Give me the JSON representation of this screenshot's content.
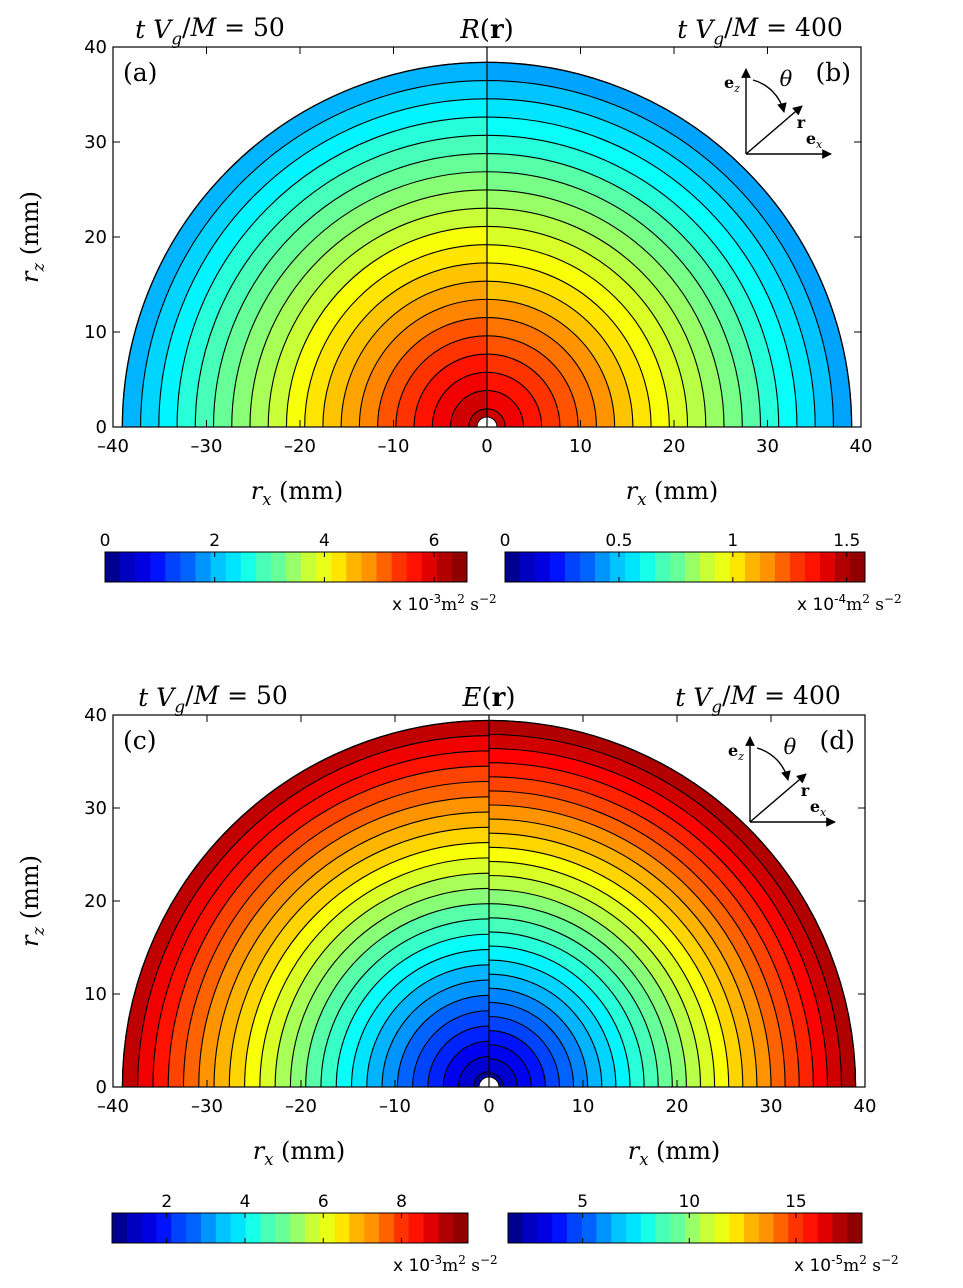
{
  "chart_data": [
    {
      "type": "heatmap",
      "kind": "polar-contour-half-disc",
      "title": "R(r)",
      "time_left": "t V_g/M = 50",
      "time_right": "t V_g/M = 400",
      "panel_left": "(a)",
      "panel_right": "(b)",
      "xlabel": "r_x (mm)",
      "ylabel": "r_z (mm)",
      "xlim": [
        -40,
        40
      ],
      "ylim": [
        0,
        40
      ],
      "xticks": [
        -40,
        -30,
        -20,
        -10,
        0,
        10,
        20,
        30,
        40
      ],
      "yticks": [
        0,
        10,
        20,
        30,
        40
      ],
      "rmax": 39,
      "inset": {
        "ez": "e_z",
        "ex": "e_x",
        "r": "r",
        "theta": "θ"
      },
      "left": {
        "levels": 20,
        "value_at_center": 6.4,
        "value_at_edge": 1.9,
        "colorbar": {
          "min": 0,
          "max": 6.6,
          "ticks": [
            0,
            2,
            4,
            6
          ],
          "unit": "x 10^-3 m^2 s^-2"
        }
      },
      "right": {
        "levels": 20,
        "value_at_center": 1.48,
        "value_at_edge": 0.43,
        "colorbar": {
          "min": 0,
          "max": 1.58,
          "ticks": [
            0,
            0.5,
            1,
            1.5
          ],
          "unit": "x 10^-4 m^2 s^-2"
        }
      }
    },
    {
      "type": "heatmap",
      "kind": "polar-contour-half-disc",
      "title": "E(r)",
      "time_left": "t V_g/M = 50",
      "time_right": "t V_g/M = 400",
      "panel_left": "(c)",
      "panel_right": "(d)",
      "xlabel": "r_x (mm)",
      "ylabel": "r_z (mm)",
      "xlim": [
        -40,
        40
      ],
      "ylim": [
        0,
        40
      ],
      "xticks": [
        -40,
        -30,
        -20,
        -10,
        0,
        10,
        20,
        30,
        40
      ],
      "yticks": [
        0,
        10,
        20,
        30,
        40
      ],
      "rmax": 39,
      "inset": {
        "ez": "e_z",
        "ex": "e_x",
        "r": "r",
        "theta": "θ"
      },
      "left": {
        "levels": 24,
        "value_at_center": 0.8,
        "value_at_edge": 9.2,
        "colorbar": {
          "min": 0.6,
          "max": 9.7,
          "ticks": [
            2,
            4,
            6,
            8
          ],
          "unit": "x 10^-3 m^2 s^-2"
        }
      },
      "right": {
        "levels": 26,
        "value_at_center": 2.0,
        "value_at_edge": 17.5,
        "colorbar": {
          "min": 1.5,
          "max": 18.1,
          "ticks": [
            5,
            10,
            15
          ],
          "unit": "x 10^-5 m^2 s^-2"
        }
      }
    }
  ]
}
